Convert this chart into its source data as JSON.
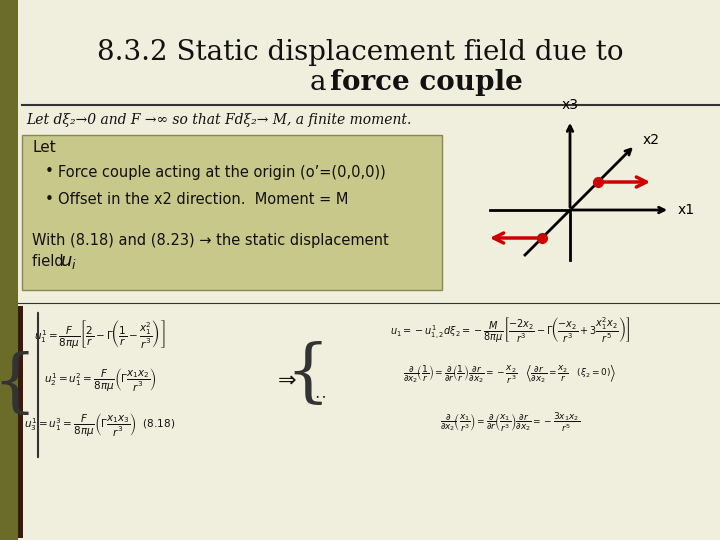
{
  "bg_color": "#f5f5dc",
  "slide_bg": "#f0eedc",
  "title_line1": "8.3.2 Static displacement field due to",
  "title_line2": "a ",
  "title_bold": "force couple",
  "subtitle": "Let dξ₂→0 and F →∞ so that Fdξ₂→ M, a finite moment.",
  "box_bg": "#b8b87a",
  "box_text_let": "Let",
  "bullet1": "Force couple acting at the origin (o’=(0,0,0))",
  "bullet2": "Offset in the x2 direction.  Moment = M",
  "body_text": "With (8.18) and (8.23) → the static displacement\nfield ",
  "body_bold": "u",
  "body_subscript": "i",
  "axes_color": "#000000",
  "arrow_color": "#cc0000",
  "label_x1": "x1",
  "label_x2": "x2",
  "label_x3": "x3",
  "decorative_bar_color": "#8c8c9e",
  "left_bar_color": "#6b6b2a",
  "formula_area_bg": "#f5f5dc"
}
